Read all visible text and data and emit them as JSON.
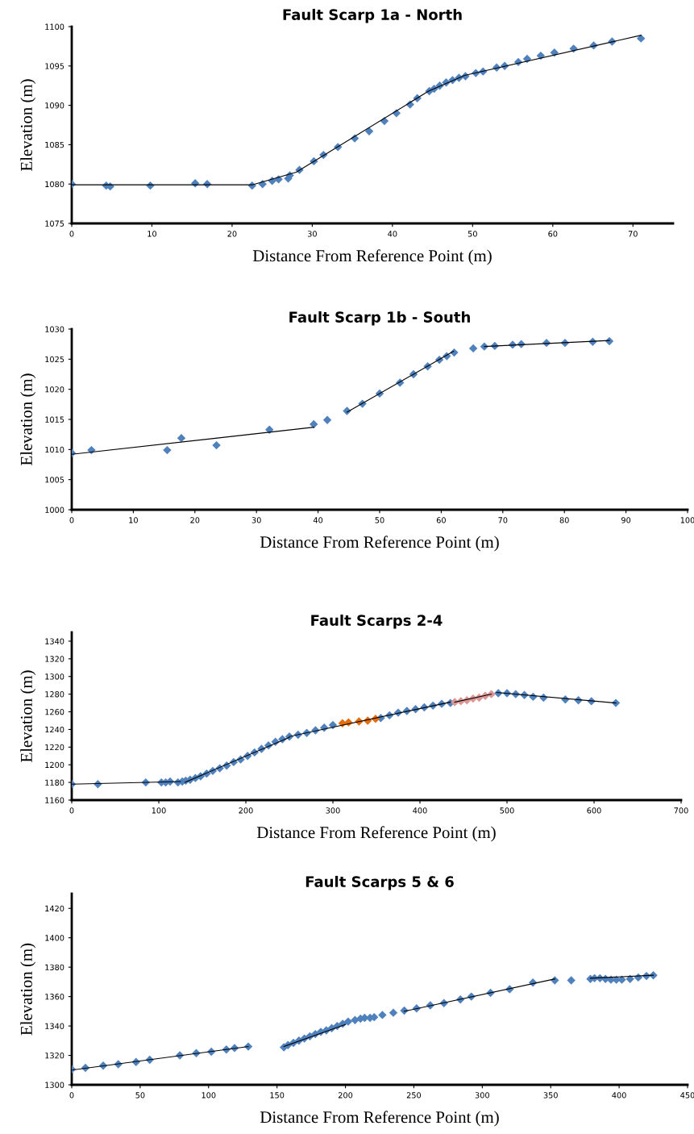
{
  "chart_data": [
    {
      "type": "scatter",
      "title": "Fault Scarp 1a - North",
      "xlabel": "Distance From Reference Point (m)",
      "ylabel": "Elevation (m)",
      "xlim": [
        0,
        75
      ],
      "xticks": [
        0,
        10,
        20,
        30,
        40,
        50,
        60,
        70
      ],
      "ylim": [
        1075,
        1100
      ],
      "yticks": [
        1075,
        1080,
        1085,
        1090,
        1095,
        1100
      ],
      "grid": false,
      "marker": "diamond",
      "series": [
        {
          "color": "#4f81bd",
          "x": [
            0,
            4.3,
            4.8,
            9.8,
            15.4,
            16.9,
            22.5,
            23.8,
            25,
            25.8,
            27,
            27.2,
            28.4,
            30.2,
            31.4,
            33.2,
            35.3,
            37.1,
            39,
            40.5,
            42.2,
            43.1,
            44.6,
            45.2,
            45.9,
            46.7,
            47.5,
            48.3,
            49.1,
            50.4,
            51.3,
            53,
            54,
            55.7,
            56.8,
            58.5,
            60.2,
            62.6,
            65.1,
            67.4,
            71
          ],
          "values": [
            1080,
            1079.8,
            1079.7,
            1079.8,
            1080.1,
            1080,
            1079.8,
            1080,
            1080.4,
            1080.6,
            1080.7,
            1081.1,
            1081.8,
            1082.9,
            1083.7,
            1084.7,
            1085.8,
            1086.7,
            1088,
            1089,
            1090.1,
            1090.9,
            1091.8,
            1092.1,
            1092.5,
            1092.9,
            1093.2,
            1093.5,
            1093.7,
            1094.1,
            1094.3,
            1094.8,
            1095,
            1095.5,
            1095.9,
            1096.3,
            1096.7,
            1097.2,
            1097.6,
            1098.1,
            1098.5
          ]
        },
        {
          "type": "line",
          "color": "#000000",
          "marker": "none",
          "x": [
            0,
            22.5,
            28,
            44.5,
            49,
            71
          ],
          "values": [
            1079.9,
            1079.9,
            1081.5,
            1091.8,
            1093.8,
            1098.9
          ]
        }
      ]
    },
    {
      "type": "scatter",
      "title": "Fault Scarp 1b - South",
      "xlabel": "Distance From Reference Point (m)",
      "ylabel": "Elevation (m)",
      "xlim": [
        0,
        100
      ],
      "xticks": [
        0,
        10,
        20,
        30,
        40,
        50,
        60,
        70,
        80,
        90,
        100
      ],
      "ylim": [
        1000,
        1030
      ],
      "yticks": [
        1000,
        1005,
        1010,
        1015,
        1020,
        1025,
        1030
      ],
      "grid": false,
      "marker": "diamond",
      "series": [
        {
          "color": "#4f81bd",
          "x": [
            0,
            3.2,
            15.5,
            17.8,
            23.5,
            32.1,
            39.3,
            41.5,
            44.7,
            47.2,
            50,
            53.3,
            55.5,
            57.8,
            59.7,
            60.9,
            62.1,
            65.2,
            67,
            68.7,
            71.6,
            73,
            77.1,
            80.1,
            84.6,
            87.3
          ],
          "values": [
            1009.4,
            1009.9,
            1009.9,
            1011.9,
            1010.7,
            1013.3,
            1014.2,
            1014.9,
            1016.4,
            1017.6,
            1019.3,
            1021.1,
            1022.5,
            1023.8,
            1024.9,
            1025.5,
            1026.1,
            1026.8,
            1027.1,
            1027.2,
            1027.4,
            1027.5,
            1027.7,
            1027.7,
            1027.9,
            1028
          ]
        },
        {
          "type": "line",
          "color": "#000000",
          "marker": "none",
          "x": [
            0,
            39.3
          ],
          "values": [
            1009.2,
            1013.7
          ]
        },
        {
          "type": "line",
          "color": "#000000",
          "marker": "none",
          "x": [
            44.7,
            62
          ],
          "values": [
            1016.2,
            1026.3
          ]
        },
        {
          "type": "line",
          "color": "#000000",
          "marker": "none",
          "x": [
            67,
            87.3
          ],
          "values": [
            1027.1,
            1028.1
          ]
        }
      ]
    },
    {
      "type": "scatter",
      "title": "Fault Scarps 2-4",
      "xlabel": "Distance From Reference Point (m)",
      "ylabel": "Elevation (m)",
      "xlim": [
        0,
        700
      ],
      "xticks": [
        0,
        100,
        200,
        300,
        400,
        500,
        600,
        700
      ],
      "ylim": [
        1160,
        1350
      ],
      "yticks": [
        1160,
        1180,
        1200,
        1220,
        1240,
        1260,
        1280,
        1300,
        1320,
        1340
      ],
      "grid": false,
      "marker": "diamond",
      "series": [
        {
          "color": "#4f81bd",
          "x": [
            0,
            30,
            85,
            103,
            108,
            113,
            122,
            127,
            131,
            136,
            142,
            148,
            155,
            162,
            170,
            178,
            186,
            194,
            202,
            210,
            218,
            226,
            234,
            242,
            250,
            260,
            270,
            280,
            290,
            300,
            355,
            365,
            375,
            385,
            395,
            405,
            415,
            425,
            435,
            490,
            500,
            510,
            520,
            530,
            542,
            567,
            582,
            597,
            625
          ],
          "values": [
            1178,
            1178,
            1180,
            1180,
            1180,
            1181,
            1180,
            1181,
            1182,
            1183,
            1185,
            1187,
            1190,
            1193,
            1196,
            1199,
            1203,
            1206,
            1210,
            1214,
            1218,
            1222,
            1226,
            1229,
            1232,
            1234,
            1236,
            1239,
            1242,
            1245,
            1253,
            1256,
            1259,
            1261,
            1263,
            1265,
            1267,
            1269,
            1270,
            1281,
            1281,
            1280,
            1279,
            1277,
            1276,
            1274,
            1273,
            1272,
            1270
          ]
        },
        {
          "color": "#e46c0a",
          "x": [
            311,
            318,
            330,
            340,
            349
          ],
          "values": [
            1247,
            1248,
            1249,
            1250,
            1252
          ]
        },
        {
          "color": "#d99694",
          "x": [
            440,
            447,
            454,
            461,
            468,
            475,
            482
          ],
          "values": [
            1271,
            1272,
            1273,
            1275,
            1276,
            1278,
            1280
          ]
        },
        {
          "type": "line",
          "color": "#000000",
          "marker": "none",
          "x": [
            0,
            125
          ],
          "values": [
            1178,
            1181
          ]
        },
        {
          "type": "line",
          "color": "#000000",
          "marker": "none",
          "x": [
            130,
            250
          ],
          "values": [
            1180,
            1231
          ]
        },
        {
          "type": "line",
          "color": "#000000",
          "marker": "none",
          "x": [
            250,
            435
          ],
          "values": [
            1232,
            1271
          ]
        },
        {
          "type": "line",
          "color": "#000000",
          "marker": "none",
          "x": [
            440,
            482
          ],
          "values": [
            1271,
            1280
          ]
        },
        {
          "type": "line",
          "color": "#000000",
          "marker": "none",
          "x": [
            488,
            625
          ],
          "values": [
            1282,
            1270
          ]
        }
      ]
    },
    {
      "type": "scatter",
      "title": "Fault Scarps 5 & 6",
      "xlabel": "Distance From Reference Point (m)",
      "ylabel": "Elevation (m)",
      "xlim": [
        0,
        450
      ],
      "xticks": [
        0,
        50,
        100,
        150,
        200,
        250,
        300,
        350,
        400,
        450
      ],
      "ylim": [
        1300,
        1430
      ],
      "yticks": [
        1300,
        1320,
        1340,
        1360,
        1380,
        1400,
        1420
      ],
      "grid": false,
      "marker": "diamond",
      "series": [
        {
          "color": "#4f81bd",
          "x": [
            0,
            10,
            23,
            34,
            47,
            57,
            79,
            91,
            102,
            113,
            119,
            129,
            155,
            158,
            162,
            166,
            170,
            174,
            178,
            182,
            186,
            190,
            194,
            198,
            202,
            207,
            211,
            214,
            218,
            221,
            227,
            235,
            243,
            252,
            262,
            272,
            284,
            292,
            306,
            320,
            337,
            353,
            365,
            379,
            382,
            386,
            390,
            394,
            398,
            402,
            408,
            414,
            420,
            425
          ],
          "values": [
            1310.5,
            1311.5,
            1313,
            1314,
            1315.5,
            1317,
            1320,
            1321.5,
            1322.5,
            1324,
            1325,
            1326,
            1325.5,
            1327,
            1328.5,
            1330,
            1331.5,
            1333,
            1334.5,
            1336,
            1337,
            1338.5,
            1340,
            1341.5,
            1343,
            1344,
            1345,
            1345.5,
            1345.5,
            1346,
            1347.5,
            1349,
            1350.5,
            1352,
            1354,
            1355.5,
            1358,
            1360,
            1362.5,
            1365,
            1369.5,
            1371,
            1371,
            1372,
            1372.5,
            1372.5,
            1372,
            1371.5,
            1371.5,
            1371.5,
            1372,
            1373,
            1374,
            1374.5
          ]
        },
        {
          "type": "line",
          "color": "#000000",
          "marker": "none",
          "x": [
            0,
            129
          ],
          "values": [
            1310,
            1326
          ]
        },
        {
          "type": "line",
          "color": "#000000",
          "marker": "none",
          "x": [
            155,
            200
          ],
          "values": [
            1326,
            1341
          ]
        },
        {
          "type": "line",
          "color": "#000000",
          "marker": "none",
          "x": [
            243,
            353
          ],
          "values": [
            1350,
            1372
          ]
        },
        {
          "type": "line",
          "color": "#000000",
          "marker": "none",
          "x": [
            379,
            425
          ],
          "values": [
            1372.5,
            1374.5
          ]
        }
      ]
    }
  ]
}
